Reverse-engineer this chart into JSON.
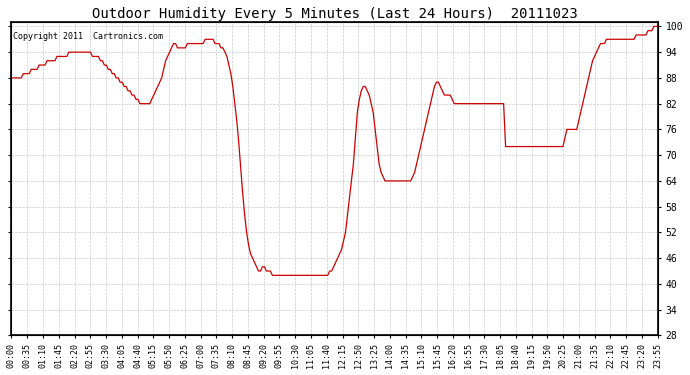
{
  "title": "Outdoor Humidity Every 5 Minutes (Last 24 Hours)  20111023",
  "copyright": "Copyright 2011  Cartronics.com",
  "line_color": "#cc0000",
  "background_color": "#ffffff",
  "plot_bg_color": "#ffffff",
  "grid_color": "#bbbbbb",
  "ylim": [
    28.0,
    101.0
  ],
  "yticks": [
    28.0,
    34.0,
    40.0,
    46.0,
    52.0,
    58.0,
    64.0,
    70.0,
    76.0,
    82.0,
    88.0,
    94.0,
    100.0
  ],
  "xtick_labels": [
    "00:00",
    "00:35",
    "01:10",
    "01:45",
    "02:20",
    "02:55",
    "03:30",
    "04:05",
    "04:40",
    "05:15",
    "05:50",
    "06:25",
    "07:00",
    "07:35",
    "08:10",
    "08:45",
    "09:20",
    "09:55",
    "10:30",
    "11:05",
    "11:40",
    "12:15",
    "12:50",
    "13:25",
    "14:00",
    "14:35",
    "15:10",
    "15:45",
    "16:20",
    "16:55",
    "17:30",
    "18:05",
    "18:40",
    "19:15",
    "19:50",
    "20:25",
    "21:00",
    "21:35",
    "22:10",
    "22:45",
    "23:20",
    "23:55"
  ],
  "humidity_data": [
    88,
    88,
    88,
    88,
    88,
    88,
    89,
    89,
    89,
    89,
    90,
    90,
    90,
    90,
    91,
    91,
    91,
    91,
    92,
    92,
    92,
    92,
    92,
    93,
    93,
    93,
    93,
    93,
    93,
    94,
    94,
    94,
    94,
    94,
    94,
    94,
    94,
    94,
    94,
    94,
    94,
    93,
    93,
    93,
    93,
    92,
    92,
    91,
    91,
    90,
    90,
    89,
    89,
    88,
    88,
    87,
    87,
    86,
    86,
    85,
    85,
    84,
    84,
    83,
    83,
    82,
    82,
    82,
    82,
    82,
    82,
    83,
    84,
    85,
    86,
    87,
    88,
    90,
    92,
    93,
    94,
    95,
    96,
    96,
    95,
    95,
    95,
    95,
    95,
    96,
    96,
    96,
    96,
    96,
    96,
    96,
    96,
    96,
    97,
    97,
    97,
    97,
    97,
    96,
    96,
    96,
    95,
    95,
    94,
    93,
    91,
    89,
    86,
    82,
    78,
    73,
    67,
    61,
    56,
    52,
    49,
    47,
    46,
    45,
    44,
    43,
    43,
    44,
    44,
    43,
    43,
    43,
    42,
    42,
    42,
    42,
    42,
    42,
    42,
    42,
    42,
    42,
    42,
    42,
    42,
    42,
    42,
    42,
    42,
    42,
    42,
    42,
    42,
    42,
    42,
    42,
    42,
    42,
    42,
    42,
    42,
    43,
    43,
    44,
    45,
    46,
    47,
    48,
    50,
    52,
    56,
    60,
    64,
    68,
    74,
    80,
    83,
    85,
    86,
    86,
    85,
    84,
    82,
    80,
    76,
    72,
    68,
    66,
    65,
    64,
    64,
    64,
    64,
    64,
    64,
    64,
    64,
    64,
    64,
    64,
    64,
    64,
    64,
    65,
    66,
    68,
    70,
    72,
    74,
    76,
    78,
    80,
    82,
    84,
    86,
    87,
    87,
    86,
    85,
    84,
    84,
    84,
    84,
    83,
    82,
    82,
    82,
    82,
    82,
    82,
    82,
    82,
    82,
    82,
    82,
    82,
    82,
    82,
    82,
    82,
    82,
    82,
    82,
    82,
    82,
    82,
    82,
    82,
    82,
    82,
    72,
    72,
    72,
    72,
    72,
    72,
    72,
    72,
    72,
    72,
    72,
    72,
    72,
    72,
    72,
    72,
    72,
    72,
    72,
    72,
    72,
    72,
    72,
    72,
    72,
    72,
    72,
    72,
    72,
    72,
    74,
    76,
    76,
    76,
    76,
    76,
    76,
    78,
    80,
    82,
    84,
    86,
    88,
    90,
    92,
    93,
    94,
    95,
    96,
    96,
    96,
    97,
    97,
    97,
    97,
    97,
    97,
    97,
    97,
    97,
    97,
    97,
    97,
    97,
    97,
    97,
    98,
    98,
    98,
    98,
    98,
    98,
    99,
    99,
    99,
    100,
    100,
    100
  ]
}
